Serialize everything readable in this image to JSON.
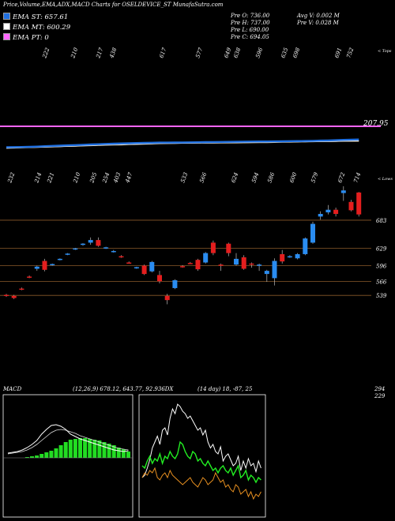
{
  "header": {
    "title": "Price,Volume,EMA,ADX,MACD Charts for OSELDEVICE_ST MunafaSutra.com",
    "ema_legend": [
      {
        "label": "EMA ST: 657.61",
        "color": "#1f6fe0"
      },
      {
        "label": "EMA MT: 600.29",
        "color": "#ffffff"
      },
      {
        "label": "EMA PT: 0",
        "color": "#ff66ff"
      }
    ],
    "prev_open": "Pre   O: 736.00",
    "prev_high": "Pre   H: 737.00",
    "prev_low": "Pre   L: 690.00",
    "prev_close": "Pre   C: 694.05",
    "avg_volume": "Avg V: 0.002  M",
    "prev_volume": "Pre   V: 0.028  M"
  },
  "ema_panel": {
    "label_text": "< Tops",
    "right_value": "207.95",
    "colors": {
      "ema_st": "#1f6fe0",
      "ema_mt": "#ffffff",
      "ema_pt": "#ff66ff",
      "thin": "#d8c8a0"
    }
  },
  "price_panel": {
    "label_text": "< Lows",
    "levels": [
      {
        "label": "683",
        "value": 683
      },
      {
        "label": "629",
        "value": 629
      },
      {
        "label": "596",
        "value": 596
      },
      {
        "label": "566",
        "value": 566
      },
      {
        "label": "539",
        "value": 539
      }
    ],
    "colors": {
      "up": "#2a8cf0",
      "down": "#e41e1e",
      "level_line": "#8a5a2a"
    }
  },
  "macd_panel": {
    "label": "MACD",
    "values": "(12,26,9) 678.12,  643.77,  92.936DX",
    "adx_values": "(14 day) 18,   -87,  25",
    "right_top": "294",
    "right_bottom": "229"
  },
  "chart_data": [
    {
      "type": "candlestick",
      "title": "",
      "top_labels": [
        "222",
        "210",
        "217",
        "438",
        "617",
        "577",
        "649",
        "638",
        "596",
        "635",
        "698",
        "691",
        "752"
      ],
      "bottom_labels": [
        "232",
        "214",
        "221",
        "210",
        "205",
        "254",
        "403",
        "447",
        "533",
        "566",
        "624",
        "594",
        "586",
        "600",
        "579",
        "672",
        "714"
      ],
      "level_lines": [
        683,
        629,
        596,
        566,
        539
      ],
      "candles": [
        {
          "o": 540,
          "h": 542,
          "l": 536,
          "c": 538
        },
        {
          "o": 538,
          "h": 540,
          "l": 532,
          "c": 534
        },
        {
          "o": 552,
          "h": 554,
          "l": 549,
          "c": 551
        },
        {
          "o": 575,
          "h": 577,
          "l": 572,
          "c": 573
        },
        {
          "o": 590,
          "h": 596,
          "l": 586,
          "c": 594
        },
        {
          "o": 605,
          "h": 609,
          "l": 585,
          "c": 588
        },
        {
          "o": 598,
          "h": 600,
          "l": 596,
          "c": 599
        },
        {
          "o": 608,
          "h": 610,
          "l": 606,
          "c": 609
        },
        {
          "o": 618,
          "h": 620,
          "l": 616,
          "c": 619
        },
        {
          "o": 628,
          "h": 630,
          "l": 626,
          "c": 629
        },
        {
          "o": 637,
          "h": 639,
          "l": 634,
          "c": 638
        },
        {
          "o": 640,
          "h": 650,
          "l": 636,
          "c": 645
        },
        {
          "o": 645,
          "h": 650,
          "l": 632,
          "c": 634
        },
        {
          "o": 630,
          "h": 632,
          "l": 628,
          "c": 631
        },
        {
          "o": 624,
          "h": 626,
          "l": 621,
          "c": 624
        },
        {
          "o": 614,
          "h": 616,
          "l": 611,
          "c": 613
        },
        {
          "o": 602,
          "h": 604,
          "l": 600,
          "c": 601
        },
        {
          "o": 592,
          "h": 594,
          "l": 590,
          "c": 593
        },
        {
          "o": 596,
          "h": 598,
          "l": 578,
          "c": 580
        },
        {
          "o": 585,
          "h": 605,
          "l": 583,
          "c": 603
        },
        {
          "o": 578,
          "h": 586,
          "l": 562,
          "c": 566
        },
        {
          "o": 538,
          "h": 542,
          "l": 522,
          "c": 530
        },
        {
          "o": 553,
          "h": 570,
          "l": 551,
          "c": 568
        },
        {
          "o": 595,
          "h": 597,
          "l": 592,
          "c": 594
        },
        {
          "o": 601,
          "h": 603,
          "l": 599,
          "c": 600
        },
        {
          "o": 607,
          "h": 609,
          "l": 586,
          "c": 589
        },
        {
          "o": 602,
          "h": 622,
          "l": 600,
          "c": 620
        },
        {
          "o": 640,
          "h": 644,
          "l": 616,
          "c": 620
        },
        {
          "o": 598,
          "h": 600,
          "l": 586,
          "c": 596
        },
        {
          "o": 638,
          "h": 640,
          "l": 614,
          "c": 620
        },
        {
          "o": 598,
          "h": 620,
          "l": 596,
          "c": 609
        },
        {
          "o": 612,
          "h": 616,
          "l": 588,
          "c": 590
        },
        {
          "o": 600,
          "h": 602,
          "l": 592,
          "c": 598
        },
        {
          "o": 596,
          "h": 600,
          "l": 586,
          "c": 598
        },
        {
          "o": 580,
          "h": 588,
          "l": 565,
          "c": 586
        },
        {
          "o": 572,
          "h": 610,
          "l": 558,
          "c": 605
        },
        {
          "o": 618,
          "h": 626,
          "l": 600,
          "c": 604
        },
        {
          "o": 614,
          "h": 616,
          "l": 611,
          "c": 614
        },
        {
          "o": 610,
          "h": 620,
          "l": 608,
          "c": 618
        },
        {
          "o": 618,
          "h": 650,
          "l": 616,
          "c": 648
        },
        {
          "o": 640,
          "h": 680,
          "l": 638,
          "c": 676
        },
        {
          "o": 690,
          "h": 700,
          "l": 684,
          "c": 695
        },
        {
          "o": 698,
          "h": 712,
          "l": 694,
          "c": 703
        },
        {
          "o": 703,
          "h": 707,
          "l": 690,
          "c": 695
        },
        {
          "o": 735,
          "h": 748,
          "l": 720,
          "c": 740
        },
        {
          "o": 718,
          "h": 722,
          "l": 700,
          "c": 702
        },
        {
          "o": 736,
          "h": 737,
          "l": 690,
          "c": 694
        }
      ],
      "ema_st": [
        380,
        381,
        382,
        383,
        386,
        390,
        393,
        396,
        399,
        402,
        405,
        408,
        411,
        414,
        417,
        419,
        421,
        423,
        425,
        427,
        428,
        428,
        429,
        430,
        431,
        432,
        433,
        434,
        435,
        436,
        437,
        438,
        439,
        440,
        440,
        441,
        442,
        443,
        444,
        445,
        447,
        449,
        451,
        453,
        457,
        459,
        461
      ],
      "ema_mt": [
        370,
        372,
        374,
        376,
        378,
        380,
        383,
        386,
        389,
        392,
        395,
        398,
        401,
        404,
        406,
        408,
        410,
        412,
        414,
        416,
        418,
        419,
        420,
        421,
        422,
        423,
        424,
        425,
        426,
        427,
        428,
        429,
        430,
        431,
        432,
        433,
        434,
        435,
        436,
        437,
        438,
        439,
        440,
        441,
        443,
        444,
        445
      ],
      "macd": {
        "histogram": [
          0,
          0,
          0,
          0,
          1,
          2,
          3,
          5,
          7,
          9,
          12,
          16,
          20,
          23,
          24,
          25,
          25,
          24,
          23,
          22,
          20,
          18,
          16,
          13,
          11,
          8
        ],
        "macd_line": [
          6,
          7,
          8,
          10,
          13,
          17,
          22,
          30,
          36,
          41,
          42,
          40,
          36,
          30,
          27,
          24,
          22,
          20,
          18,
          16,
          14,
          12,
          10,
          9,
          8,
          9
        ],
        "signal_line": [
          5,
          6,
          7,
          8,
          10,
          13,
          17,
          22,
          27,
          32,
          35,
          36,
          35,
          33,
          31,
          28,
          26,
          24,
          22,
          20,
          18,
          16,
          14,
          12,
          11,
          10
        ]
      },
      "adx": {
        "white": [
          30,
          32,
          38,
          45,
          55,
          60,
          65,
          58,
          70,
          72,
          66,
          80,
          88,
          84,
          92,
          90,
          86,
          84,
          80,
          82,
          78,
          74,
          70,
          72,
          66,
          70,
          60,
          55,
          58,
          52,
          50,
          56,
          44,
          48,
          50,
          45,
          40,
          42,
          48,
          36,
          44,
          38,
          46,
          40,
          42,
          35,
          44,
          38
        ],
        "green": [
          40,
          38,
          44,
          48,
          42,
          46,
          44,
          50,
          42,
          48,
          46,
          52,
          48,
          46,
          50,
          60,
          58,
          52,
          48,
          46,
          52,
          50,
          44,
          46,
          42,
          40,
          44,
          40,
          36,
          38,
          34,
          38,
          40,
          36,
          34,
          38,
          32,
          36,
          40,
          30,
          32,
          36,
          28,
          32,
          30,
          26,
          30,
          28
        ],
        "orange": [
          30,
          34,
          32,
          36,
          34,
          38,
          30,
          28,
          32,
          34,
          30,
          36,
          32,
          30,
          28,
          26,
          24,
          26,
          28,
          30,
          26,
          24,
          22,
          26,
          30,
          28,
          24,
          26,
          28,
          34,
          30,
          26,
          28,
          22,
          24,
          20,
          18,
          24,
          22,
          16,
          18,
          20,
          14,
          18,
          12,
          16,
          14,
          18
        ]
      }
    }
  ]
}
